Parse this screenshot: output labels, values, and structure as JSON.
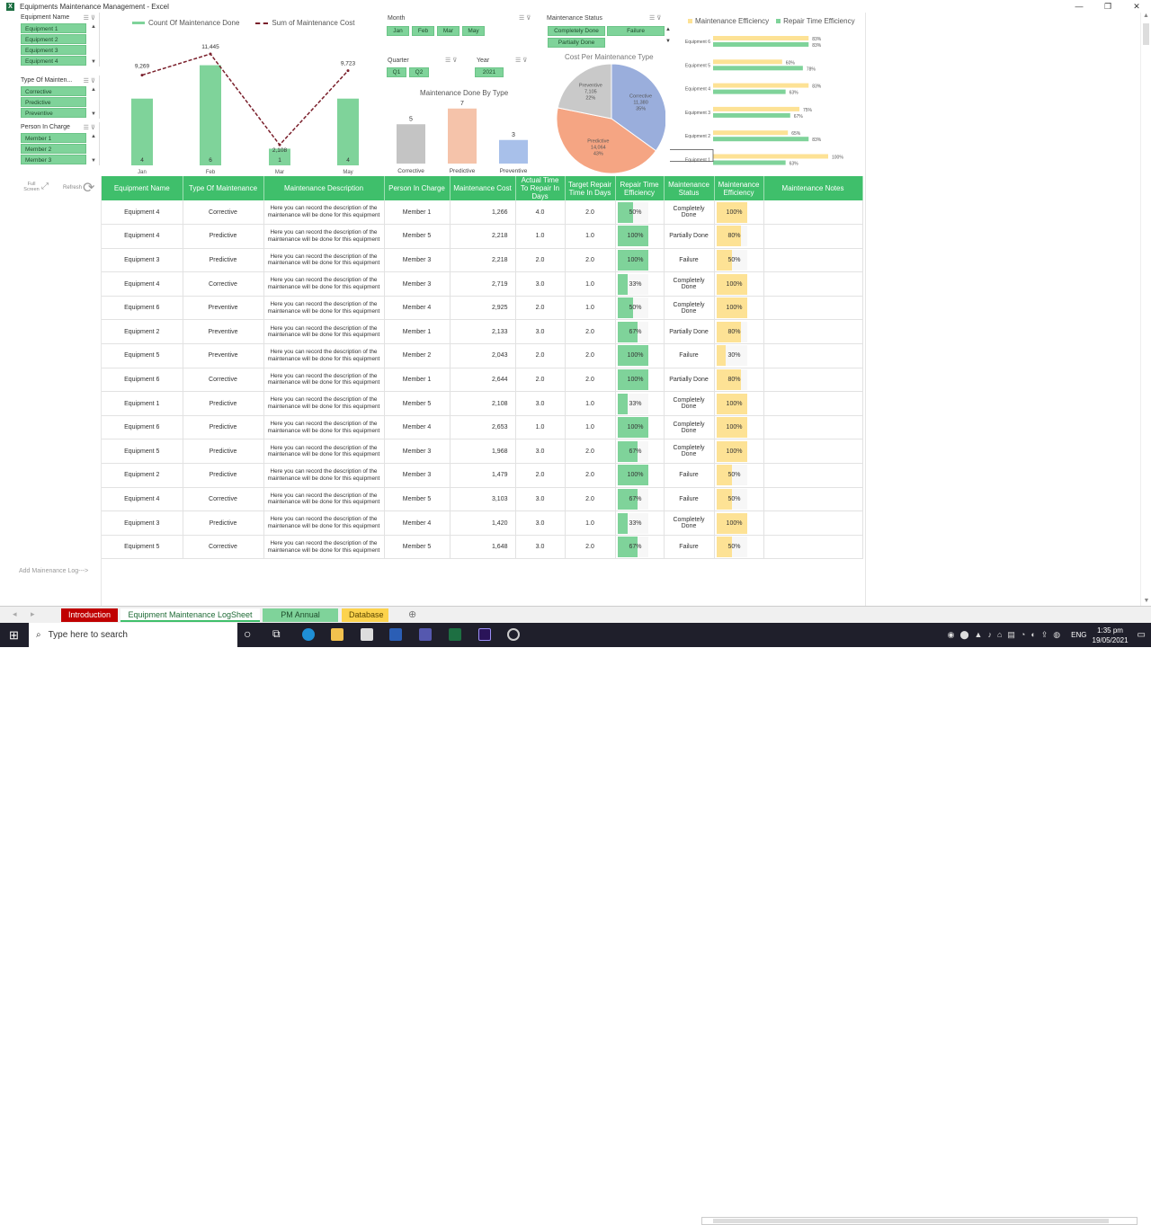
{
  "window": {
    "title": "Equipments Maintenance Management - Excel",
    "minimize": "—",
    "restore": "❐",
    "close": "✕"
  },
  "slicers": [
    {
      "title": "Equipment Name",
      "items": [
        "Equipment 1",
        "Equipment 2",
        "Equipment 3",
        "Equipment 4"
      ]
    },
    {
      "title": "Type Of Mainten...",
      "items": [
        "Corrective",
        "Predictive",
        "Preventive"
      ]
    },
    {
      "title": "Person In Charge",
      "items": [
        "Member 1",
        "Member 2",
        "Member 3"
      ]
    }
  ],
  "toolbar": {
    "fullscreen_label": "Full Screen",
    "refresh_label": "Refresh"
  },
  "combo_chart": {
    "legend_bar": "Count Of Maintenance Done",
    "legend_line": "Sum of Maintenance Cost"
  },
  "month_slicer": {
    "title": "Month",
    "items": [
      "Jan",
      "Feb",
      "Mar",
      "May"
    ]
  },
  "quarter_slicer": {
    "title": "Quarter",
    "items": [
      "Q1",
      "Q2"
    ]
  },
  "year_slicer": {
    "title": "Year",
    "items": [
      "2021"
    ]
  },
  "status_slicer": {
    "title": "Maintenance Status",
    "items": [
      "Completely Done",
      "Failure",
      "Partially Done"
    ]
  },
  "bar_chart": {
    "title": "Maintenance Done By Type"
  },
  "pie_chart": {
    "title": "Cost Per Maintenance Type"
  },
  "hbar_chart": {
    "legend_1": "Maintenance Efficiency",
    "legend_2": "Repair Time Efficiency"
  },
  "chart_data": [
    {
      "type": "bar",
      "categories": [
        "Jan",
        "Feb",
        "Mar",
        "May"
      ],
      "series": [
        {
          "name": "Count Of Maintenance Done",
          "values": [
            4,
            6,
            1,
            4
          ]
        },
        {
          "name": "Sum of Maintenance Cost",
          "values": [
            9269,
            11445,
            2108,
            9723
          ]
        }
      ]
    },
    {
      "type": "bar",
      "title": "Maintenance Done By Type",
      "categories": [
        "Corrective",
        "Predictive",
        "Preventive"
      ],
      "values": [
        5,
        7,
        3
      ]
    },
    {
      "type": "pie",
      "title": "Cost Per Maintenance Type",
      "categories": [
        "Corrective",
        "Predictive",
        "Preventive"
      ],
      "values": [
        11380,
        14064,
        7105
      ],
      "labels": [
        "11,380",
        "14,064",
        "7,105"
      ],
      "percents": [
        "35%",
        "43%",
        "22%"
      ]
    },
    {
      "type": "bar",
      "categories": [
        "Equipment 6",
        "Equipment 5",
        "Equipment 4",
        "Equipment 3",
        "Equipment 2",
        "Equipment 1"
      ],
      "series": [
        {
          "name": "Maintenance Efficiency",
          "values": [
            83,
            60,
            83,
            75,
            65,
            100
          ]
        },
        {
          "name": "Repair Time Efficiency",
          "values": [
            83,
            78,
            63,
            67,
            83,
            63
          ]
        }
      ]
    }
  ],
  "table": {
    "headers": [
      "Equipment Name",
      "Type Of Maintenance",
      "Maintenance Description",
      "Person In Charge",
      "Maintenance Cost",
      "Actual Time To Repair In Days",
      "Target Repair Time In Days",
      "Repair Time Efficiency",
      "Maintenance Status",
      "Maintenance Efficiency",
      "Maintenance Notes"
    ],
    "description": "Here you can record the description of the maintenance will be done for this equipment",
    "rows": [
      [
        "Equipment 4",
        "Corrective",
        "Member 1",
        "1,266",
        "4.0",
        "2.0",
        50,
        "50%",
        "Completely Done",
        100,
        "100%"
      ],
      [
        "Equipment 4",
        "Predictive",
        "Member 5",
        "2,218",
        "1.0",
        "1.0",
        100,
        "100%",
        "Partially Done",
        80,
        "80%"
      ],
      [
        "Equipment 3",
        "Predictive",
        "Member 3",
        "2,218",
        "2.0",
        "2.0",
        100,
        "100%",
        "Failure",
        50,
        "50%"
      ],
      [
        "Equipment 4",
        "Corrective",
        "Member 3",
        "2,719",
        "3.0",
        "1.0",
        33,
        "33%",
        "Completely Done",
        100,
        "100%"
      ],
      [
        "Equipment 6",
        "Preventive",
        "Member 4",
        "2,925",
        "2.0",
        "1.0",
        50,
        "50%",
        "Completely Done",
        100,
        "100%"
      ],
      [
        "Equipment 2",
        "Preventive",
        "Member 1",
        "2,133",
        "3.0",
        "2.0",
        67,
        "67%",
        "Partially Done",
        80,
        "80%"
      ],
      [
        "Equipment 5",
        "Preventive",
        "Member 2",
        "2,043",
        "2.0",
        "2.0",
        100,
        "100%",
        "Failure",
        30,
        "30%"
      ],
      [
        "Equipment 6",
        "Corrective",
        "Member 1",
        "2,644",
        "2.0",
        "2.0",
        100,
        "100%",
        "Partially Done",
        80,
        "80%"
      ],
      [
        "Equipment 1",
        "Predictive",
        "Member 5",
        "2,108",
        "3.0",
        "1.0",
        33,
        "33%",
        "Completely Done",
        100,
        "100%"
      ],
      [
        "Equipment 6",
        "Predictive",
        "Member 4",
        "2,653",
        "1.0",
        "1.0",
        100,
        "100%",
        "Completely Done",
        100,
        "100%"
      ],
      [
        "Equipment 5",
        "Predictive",
        "Member 3",
        "1,968",
        "3.0",
        "2.0",
        67,
        "67%",
        "Completely Done",
        100,
        "100%"
      ],
      [
        "Equipment 2",
        "Predictive",
        "Member 3",
        "1,479",
        "2.0",
        "2.0",
        100,
        "100%",
        "Failure",
        50,
        "50%"
      ],
      [
        "Equipment 4",
        "Corrective",
        "Member 5",
        "3,103",
        "3.0",
        "2.0",
        67,
        "67%",
        "Failure",
        50,
        "50%"
      ],
      [
        "Equipment 3",
        "Predictive",
        "Member 4",
        "1,420",
        "3.0",
        "1.0",
        33,
        "33%",
        "Completely Done",
        100,
        "100%"
      ],
      [
        "Equipment 5",
        "Corrective",
        "Member 5",
        "1,648",
        "3.0",
        "2.0",
        67,
        "67%",
        "Failure",
        50,
        "50%"
      ]
    ]
  },
  "add_log": "Add Mainenance Log--->",
  "sheet_tabs": [
    "Introduction",
    "Equipment Maintenance LogSheet",
    "PM Annual Board",
    "Database"
  ],
  "taskbar": {
    "search_placeholder": "Type here to search",
    "lang": "ENG",
    "time": "1:35 pm",
    "date": "19/05/2021"
  },
  "colors": {
    "green": "#3fbf6b",
    "light_green": "#7fd39a",
    "yellow": "#fde295",
    "salmon": "#f5a583",
    "blue": "#9aaedc",
    "grey": "#c4c4c4"
  }
}
